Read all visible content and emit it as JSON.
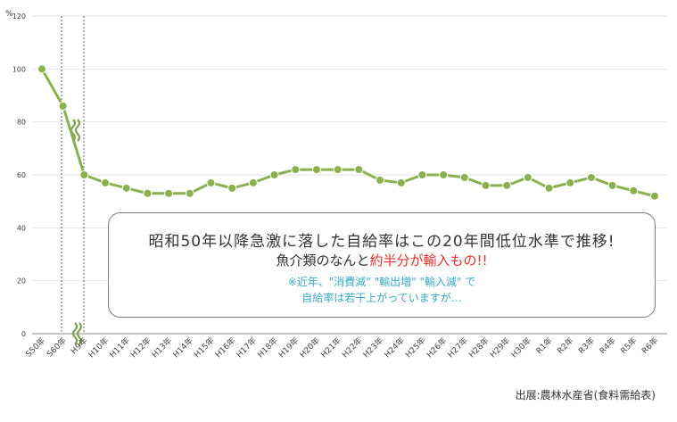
{
  "chart_data": {
    "type": "line",
    "unit_label": "%",
    "categories": [
      "S50年",
      "S60年",
      "H9年",
      "H10年",
      "H11年",
      "H12年",
      "H13年",
      "H14年",
      "H15年",
      "H16年",
      "H17年",
      "H18年",
      "H19年",
      "H20年",
      "H21年",
      "H22年",
      "H23年",
      "H24年",
      "H25年",
      "H26年",
      "H27年",
      "H28年",
      "H29年",
      "H30年",
      "R1年",
      "R2年",
      "R3年",
      "R4年",
      "R5年",
      "R6年"
    ],
    "values": [
      100,
      86,
      60,
      57,
      55,
      53,
      53,
      53,
      57,
      55,
      57,
      60,
      62,
      62,
      62,
      62,
      58,
      57,
      60,
      60,
      59,
      56,
      56,
      59,
      55,
      57,
      59,
      56,
      54,
      52
    ],
    "ylim": [
      0,
      120
    ],
    "yticks": [
      0,
      20,
      40,
      60,
      80,
      100,
      120
    ],
    "grid": true,
    "line_color": "#8cb050",
    "marker_color": "#8cb050"
  },
  "annotation": {
    "line1": "昭和50年以降急激に落した自給率はこの20年間低位水準で推移!",
    "line2_before": "魚介類のなんと",
    "line2_highlight": "約半分が輸入もの!!",
    "line3": "※近年、\"消費減\" \"輸出増\" \"輸入減\" で",
    "line4": "自給率は若干上がっていますが…"
  },
  "source": "出展:農林水産省(食料需給表)"
}
